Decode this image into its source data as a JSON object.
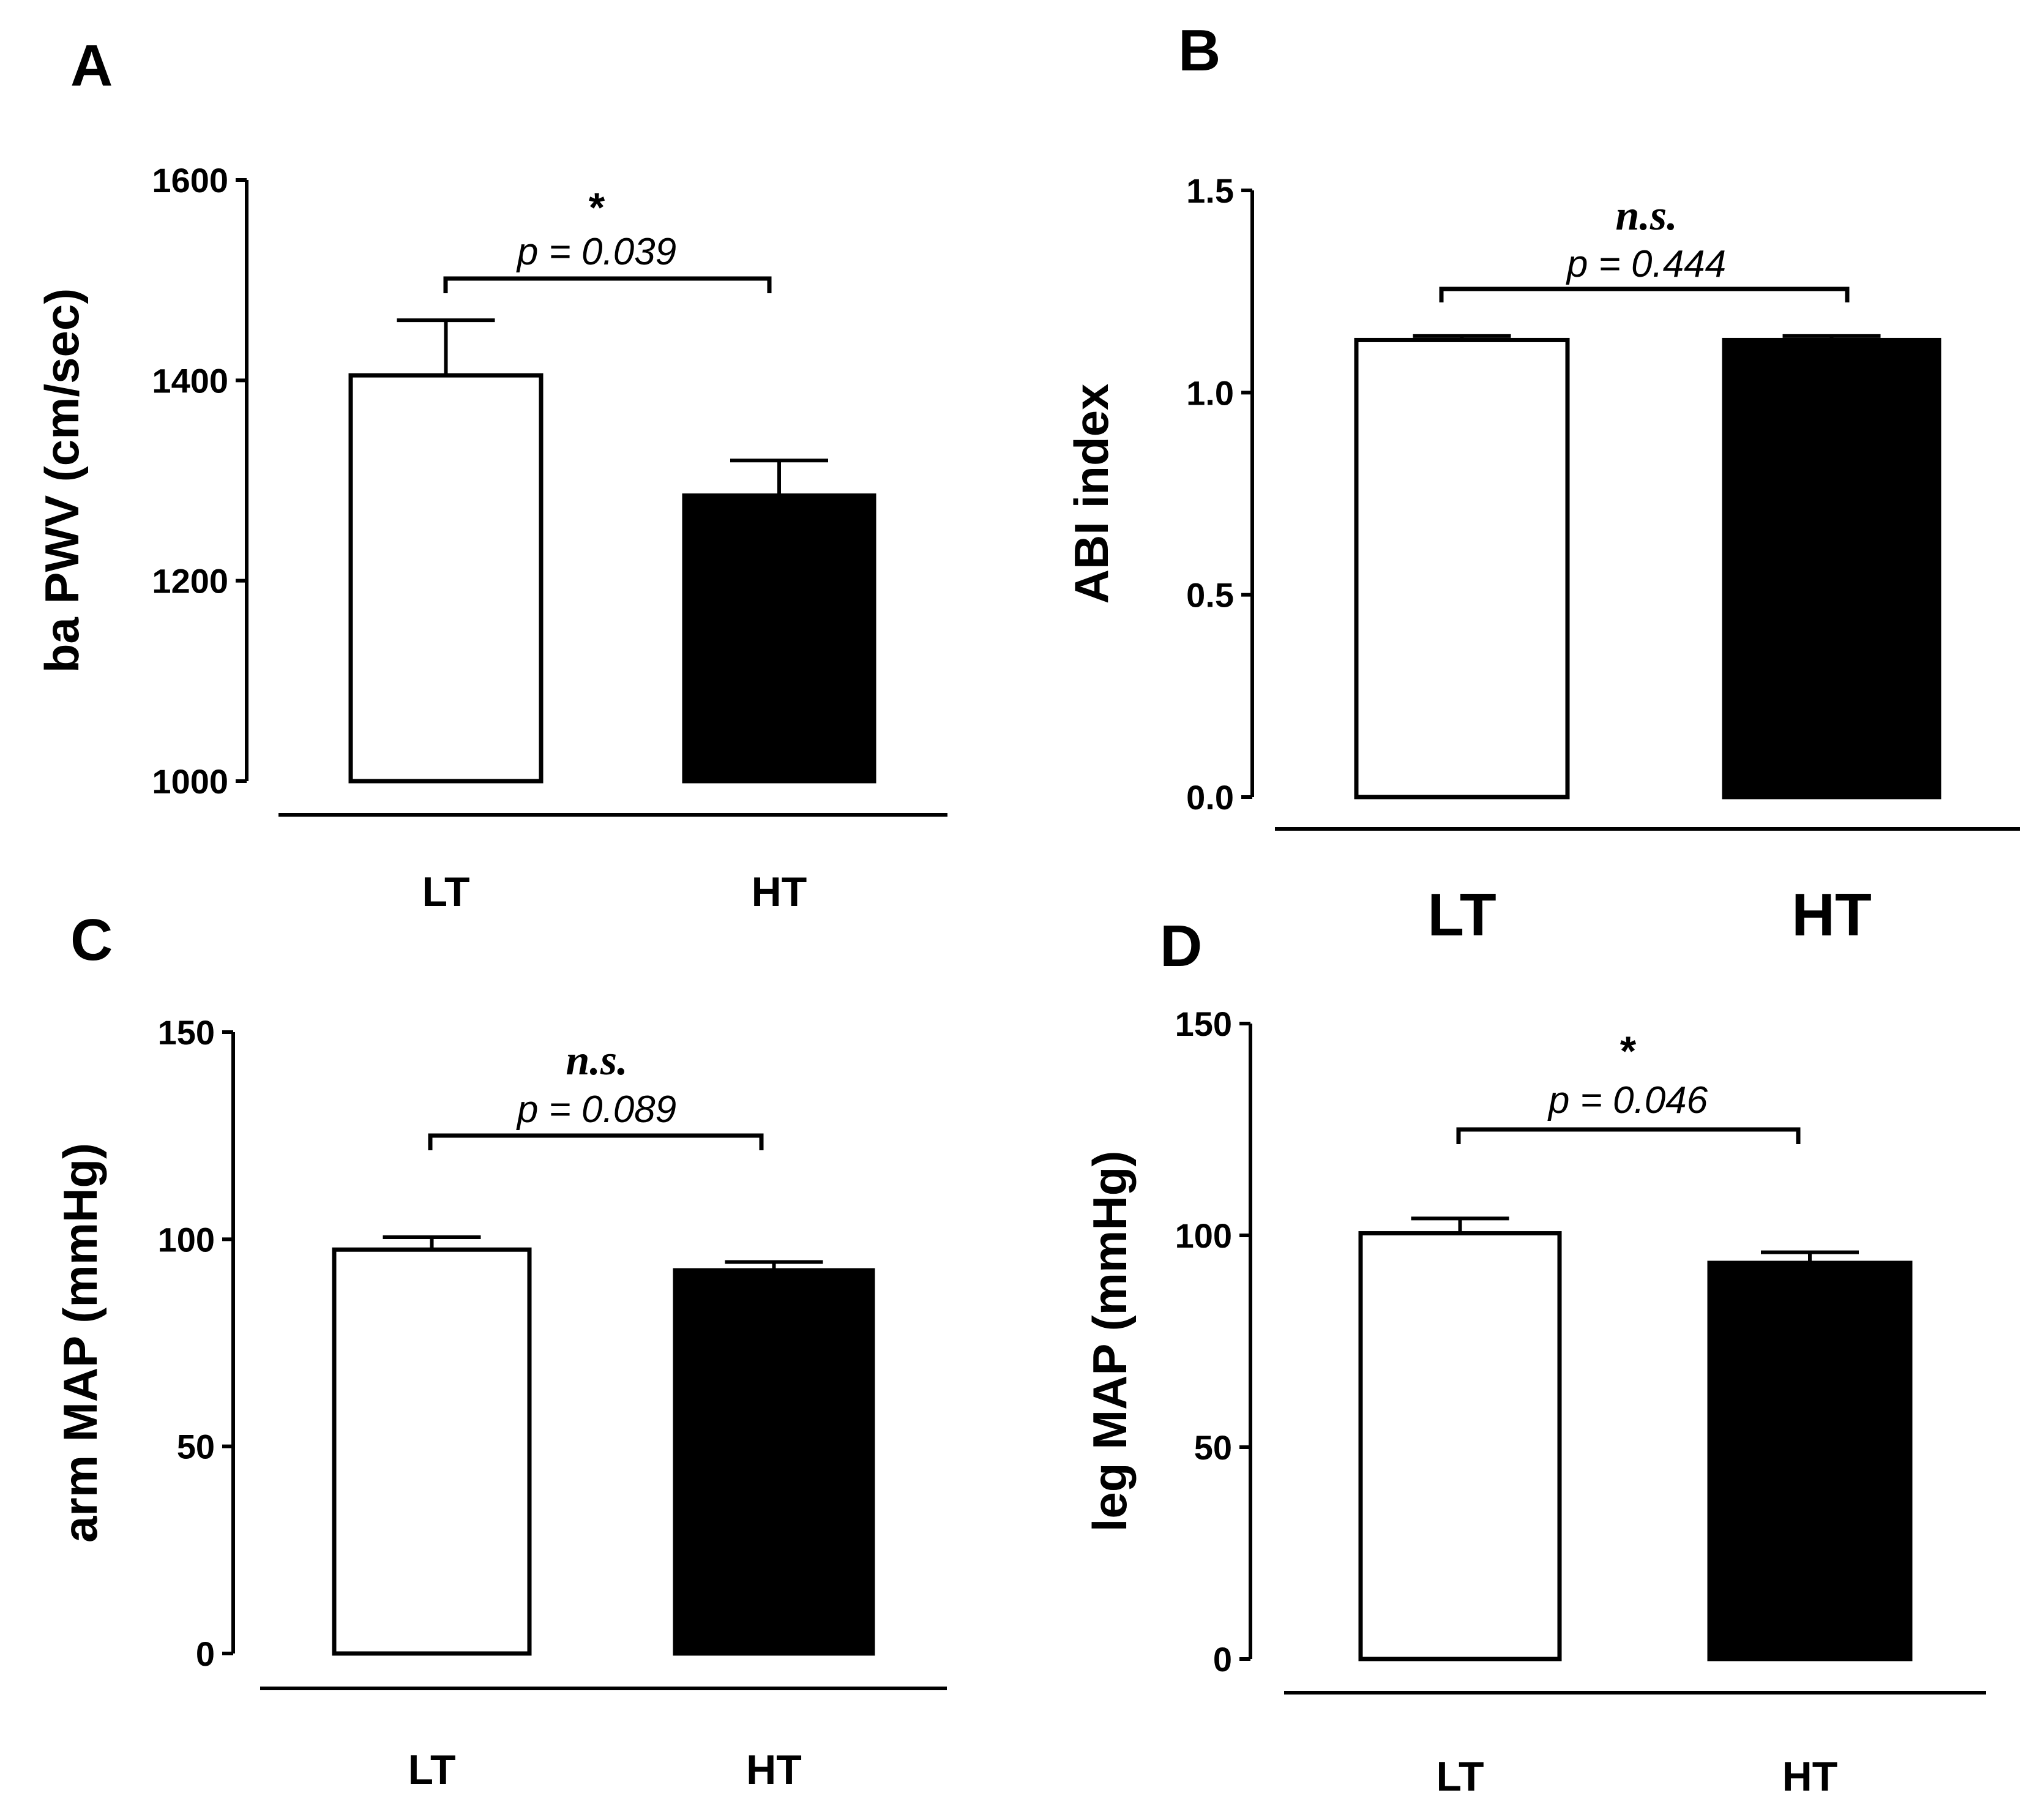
{
  "colors": {
    "axis": "#000000",
    "lt_fill": "#ffffff",
    "ht_fill": "#000000"
  },
  "chart_data": [
    {
      "panel": "A",
      "type": "bar",
      "ylabel": "ba PWV (cm/sec)",
      "categories": [
        "LT",
        "HT"
      ],
      "values": [
        1405,
        1285
      ],
      "errors": [
        55,
        35
      ],
      "fills": [
        "#ffffff",
        "#000000"
      ],
      "ylim": [
        1000,
        1600
      ],
      "yticks": [
        1000,
        1200,
        1400,
        1600
      ],
      "tick_labels": [
        "1000",
        "1200",
        "1400",
        "1600"
      ],
      "significance": {
        "symbol": "*",
        "p_text": "p = 0.039"
      }
    },
    {
      "panel": "B",
      "type": "bar",
      "ylabel": "ABI index",
      "categories": [
        "LT",
        "HT"
      ],
      "values": [
        1.13,
        1.13
      ],
      "errors": [
        0.01,
        0.01
      ],
      "fills": [
        "#ffffff",
        "#000000"
      ],
      "ylim": [
        0,
        1.5
      ],
      "yticks": [
        0,
        0.5,
        1.0,
        1.5
      ],
      "tick_labels": [
        "0.0",
        "0.5",
        "1.0",
        "1.5"
      ],
      "significance": {
        "symbol": "n.s.",
        "p_text": "p = 0.444"
      }
    },
    {
      "panel": "C",
      "type": "bar",
      "ylabel": "arm MAP (mmHg)",
      "categories": [
        "LT",
        "HT"
      ],
      "values": [
        97.5,
        92.5
      ],
      "errors": [
        3,
        2
      ],
      "fills": [
        "#ffffff",
        "#000000"
      ],
      "ylim": [
        0,
        150
      ],
      "yticks": [
        0,
        50,
        100,
        150
      ],
      "tick_labels": [
        "0",
        "50",
        "100",
        "150"
      ],
      "significance": {
        "symbol": "n.s.",
        "p_text": "p = 0.089"
      }
    },
    {
      "panel": "D",
      "type": "bar",
      "ylabel": "leg MAP (mmHg)",
      "categories": [
        "LT",
        "HT"
      ],
      "values": [
        100.5,
        93.5
      ],
      "errors": [
        3.5,
        2.5
      ],
      "fills": [
        "#ffffff",
        "#000000"
      ],
      "ylim": [
        0,
        150
      ],
      "yticks": [
        0,
        50,
        100,
        150
      ],
      "tick_labels": [
        "0",
        "50",
        "100",
        "150"
      ],
      "significance": {
        "symbol": "*",
        "p_text": "p = 0.046"
      }
    }
  ]
}
